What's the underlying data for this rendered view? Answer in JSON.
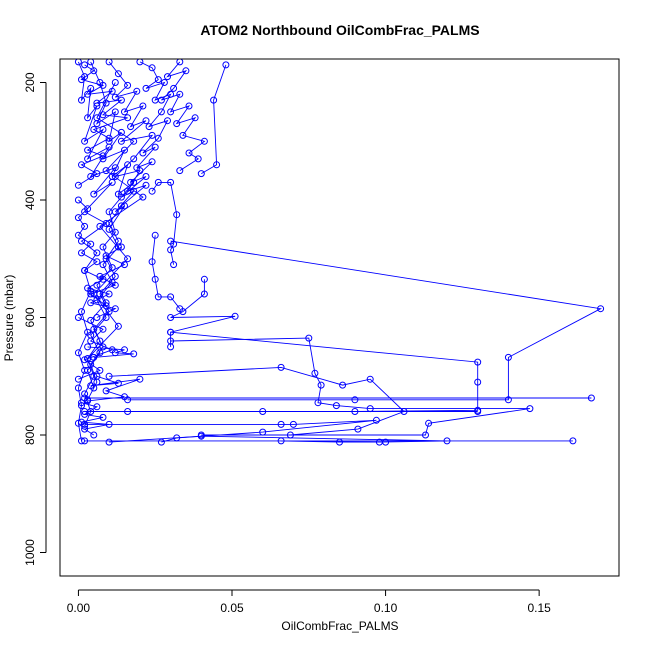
{
  "chart_data": {
    "type": "line",
    "title": "ATOM2 Northbound OilCombFrac_PALMS",
    "xlabel": "OilCombFrac_PALMS",
    "ylabel": "Pressure (mbar)",
    "xlim": [
      -0.006,
      0.176
    ],
    "ylim": [
      1040,
      160
    ],
    "y_reversed": true,
    "grid": false,
    "x_ticks": [
      0.0,
      0.05,
      0.1,
      0.15
    ],
    "x_tick_labels": [
      "0.00",
      "0.05",
      "0.10",
      "0.15"
    ],
    "y_ticks": [
      200,
      400,
      600,
      800,
      1000
    ],
    "y_tick_labels": [
      "200",
      "400",
      "600",
      "800",
      "1000"
    ],
    "series_color": "#0000ff",
    "series": [
      {
        "points": [
          [
            0.0,
            165
          ],
          [
            0.002,
            190
          ],
          [
            0.001,
            230
          ],
          [
            0.004,
            210
          ],
          [
            0.003,
            260
          ],
          [
            0.006,
            240
          ],
          [
            0.002,
            300
          ],
          [
            0.008,
            280
          ],
          [
            0.003,
            330
          ],
          [
            0.01,
            310
          ],
          [
            0.004,
            360
          ],
          [
            0.012,
            345
          ],
          [
            0.005,
            390
          ],
          [
            0.011,
            370
          ],
          [
            0.002,
            420
          ],
          [
            0.009,
            440
          ],
          [
            0.001,
            470
          ],
          [
            0.006,
            490
          ],
          [
            0.002,
            520
          ],
          [
            0.004,
            555
          ],
          [
            0.001,
            590
          ],
          [
            0.003,
            625
          ],
          [
            0.0,
            660
          ],
          [
            0.002,
            690
          ],
          [
            0.0,
            720
          ],
          [
            0.001,
            750
          ],
          [
            0.0,
            780
          ],
          [
            0.001,
            810
          ]
        ]
      },
      {
        "points": [
          [
            0.004,
            165
          ],
          [
            0.007,
            200
          ],
          [
            0.009,
            235
          ],
          [
            0.006,
            270
          ],
          [
            0.012,
            250
          ],
          [
            0.01,
            300
          ],
          [
            0.014,
            285
          ],
          [
            0.008,
            330
          ],
          [
            0.015,
            315
          ],
          [
            0.011,
            360
          ],
          [
            0.016,
            340
          ],
          [
            0.013,
            390
          ],
          [
            0.018,
            370
          ],
          [
            0.01,
            420
          ],
          [
            0.012,
            455
          ],
          [
            0.008,
            480
          ],
          [
            0.011,
            515
          ],
          [
            0.006,
            545
          ],
          [
            0.009,
            575
          ],
          [
            0.004,
            605
          ],
          [
            0.007,
            640
          ],
          [
            0.003,
            670
          ],
          [
            0.005,
            700
          ],
          [
            0.002,
            730
          ],
          [
            0.004,
            760
          ],
          [
            0.002,
            785
          ]
        ]
      },
      {
        "points": [
          [
            0.01,
            165
          ],
          [
            0.013,
            185
          ],
          [
            0.016,
            205
          ],
          [
            0.012,
            225
          ],
          [
            0.019,
            215
          ],
          [
            0.015,
            250
          ],
          [
            0.021,
            240
          ],
          [
            0.017,
            275
          ],
          [
            0.022,
            265
          ],
          [
            0.014,
            300
          ],
          [
            0.024,
            290
          ],
          [
            0.018,
            330
          ],
          [
            0.012,
            360
          ],
          [
            0.02,
            350
          ],
          [
            0.016,
            385
          ],
          [
            0.022,
            375
          ],
          [
            0.014,
            410
          ],
          [
            0.01,
            440
          ],
          [
            0.013,
            470
          ],
          [
            0.009,
            500
          ],
          [
            0.012,
            530
          ],
          [
            0.007,
            560
          ],
          [
            0.01,
            590
          ],
          [
            0.005,
            620
          ],
          [
            0.008,
            650
          ],
          [
            0.004,
            680
          ],
          [
            0.006,
            710
          ],
          [
            0.003,
            740
          ]
        ]
      },
      {
        "points": [
          [
            0.02,
            165
          ],
          [
            0.024,
            175
          ],
          [
            0.026,
            195
          ],
          [
            0.022,
            210
          ],
          [
            0.028,
            200
          ],
          [
            0.025,
            230
          ],
          [
            0.03,
            220
          ],
          [
            0.027,
            250
          ],
          [
            0.023,
            275
          ],
          [
            0.029,
            265
          ],
          [
            0.026,
            295
          ],
          [
            0.021,
            320
          ],
          [
            0.025,
            310
          ],
          [
            0.019,
            345
          ],
          [
            0.024,
            335
          ],
          [
            0.017,
            370
          ],
          [
            0.022,
            360
          ],
          [
            0.014,
            395
          ],
          [
            0.018,
            385
          ],
          [
            0.012,
            420
          ],
          [
            0.015,
            410
          ],
          [
            0.01,
            450
          ],
          [
            0.013,
            480
          ],
          [
            0.008,
            510
          ],
          [
            0.011,
            540
          ],
          [
            0.006,
            570
          ],
          [
            0.009,
            600
          ],
          [
            0.004,
            630
          ],
          [
            0.007,
            660
          ],
          [
            0.003,
            690
          ],
          [
            0.005,
            720
          ]
        ]
      },
      {
        "points": [
          [
            0.033,
            165
          ],
          [
            0.029,
            190
          ],
          [
            0.035,
            180
          ],
          [
            0.031,
            210
          ],
          [
            0.027,
            230
          ],
          [
            0.033,
            220
          ],
          [
            0.03,
            250
          ],
          [
            0.036,
            240
          ],
          [
            0.032,
            270
          ],
          [
            0.038,
            260
          ],
          [
            0.034,
            290
          ],
          [
            0.041,
            300
          ],
          [
            0.036,
            320
          ],
          [
            0.039,
            330
          ],
          [
            0.033,
            350
          ]
        ]
      },
      {
        "points": [
          [
            0.048,
            170
          ],
          [
            0.044,
            230
          ],
          [
            0.045,
            340
          ],
          [
            0.04,
            355
          ]
        ]
      },
      {
        "points": [
          [
            0.024,
            385
          ],
          [
            0.026,
            370
          ],
          [
            0.03,
            370
          ],
          [
            0.032,
            425
          ],
          [
            0.031,
            475
          ],
          [
            0.03,
            485
          ],
          [
            0.031,
            510
          ]
        ]
      },
      {
        "points": [
          [
            0.025,
            460
          ],
          [
            0.024,
            505
          ],
          [
            0.025,
            535
          ],
          [
            0.026,
            565
          ],
          [
            0.03,
            565
          ],
          [
            0.033,
            585
          ]
        ]
      },
      {
        "points": [
          [
            0.041,
            535
          ],
          [
            0.041,
            560
          ],
          [
            0.034,
            590
          ],
          [
            0.03,
            600
          ],
          [
            0.051,
            598
          ],
          [
            0.03,
            625
          ],
          [
            0.03,
            650
          ]
        ]
      },
      {
        "points": [
          [
            0.03,
            470
          ],
          [
            0.17,
            585
          ],
          [
            0.14,
            668
          ],
          [
            0.14,
            740
          ],
          [
            0.09,
            740
          ],
          [
            0.016,
            740
          ]
        ]
      },
      {
        "points": [
          [
            0.03,
            625
          ],
          [
            0.13,
            676
          ],
          [
            0.13,
            710
          ],
          [
            0.13,
            758
          ],
          [
            0.09,
            760
          ],
          [
            0.06,
            760
          ],
          [
            0.016,
            760
          ]
        ]
      },
      {
        "points": [
          [
            0.03,
            640
          ],
          [
            0.075,
            635
          ],
          [
            0.077,
            695
          ],
          [
            0.079,
            715
          ],
          [
            0.078,
            745
          ],
          [
            0.084,
            750
          ],
          [
            0.095,
            755
          ],
          [
            0.147,
            755
          ],
          [
            0.114,
            780
          ],
          [
            0.113,
            800
          ],
          [
            0.04,
            800
          ]
        ]
      },
      {
        "points": [
          [
            0.01,
            700
          ],
          [
            0.066,
            685
          ],
          [
            0.086,
            715
          ],
          [
            0.095,
            705
          ],
          [
            0.106,
            760
          ],
          [
            0.091,
            790
          ],
          [
            0.069,
            800
          ]
        ]
      },
      {
        "points": [
          [
            0.002,
            737
          ],
          [
            0.167,
            737
          ]
        ]
      },
      {
        "points": [
          [
            0.002,
            760
          ],
          [
            0.13,
            760
          ]
        ]
      },
      {
        "points": [
          [
            0.002,
            810
          ],
          [
            0.161,
            810
          ]
        ]
      },
      {
        "points": [
          [
            0.01,
            812
          ],
          [
            0.04,
            802
          ],
          [
            0.12,
            810
          ],
          [
            0.098,
            812
          ],
          [
            0.066,
            810
          ],
          [
            0.085,
            812
          ],
          [
            0.1,
            812
          ]
        ]
      },
      {
        "points": [
          [
            0.002,
            782
          ],
          [
            0.066,
            782
          ],
          [
            0.07,
            782
          ],
          [
            0.097,
            775
          ],
          [
            0.06,
            795
          ],
          [
            0.032,
            805
          ],
          [
            0.027,
            812
          ]
        ]
      },
      {
        "points": [
          [
            0.003,
            650
          ],
          [
            0.015,
            655
          ],
          [
            0.012,
            660
          ],
          [
            0.018,
            662
          ],
          [
            0.005,
            668
          ]
        ]
      },
      {
        "points": [
          [
            0.0,
            600
          ],
          [
            0.008,
            620
          ],
          [
            0.004,
            640
          ],
          [
            0.011,
            655
          ],
          [
            0.002,
            672
          ],
          [
            0.007,
            690
          ],
          [
            0.0,
            705
          ]
        ]
      },
      {
        "points": [
          [
            0.002,
            170
          ],
          [
            0.005,
            180
          ],
          [
            0.001,
            195
          ],
          [
            0.008,
            205
          ],
          [
            0.003,
            220
          ],
          [
            0.011,
            215
          ],
          [
            0.006,
            235
          ],
          [
            0.014,
            230
          ],
          [
            0.008,
            255
          ],
          [
            0.016,
            260
          ],
          [
            0.005,
            280
          ],
          [
            0.01,
            295
          ],
          [
            0.003,
            315
          ],
          [
            0.008,
            325
          ],
          [
            0.001,
            340
          ],
          [
            0.006,
            355
          ],
          [
            0.0,
            375
          ]
        ]
      },
      {
        "points": [
          [
            0.0,
            400
          ],
          [
            0.003,
            415
          ],
          [
            0.0,
            430
          ],
          [
            0.002,
            445
          ],
          [
            0.0,
            460
          ],
          [
            0.004,
            475
          ],
          [
            0.001,
            490
          ],
          [
            0.006,
            505
          ],
          [
            0.002,
            520
          ],
          [
            0.008,
            535
          ],
          [
            0.003,
            550
          ],
          [
            0.01,
            560
          ],
          [
            0.004,
            575
          ],
          [
            0.012,
            585
          ],
          [
            0.006,
            600
          ]
        ]
      },
      {
        "points": [
          [
            0.014,
            480
          ],
          [
            0.009,
            495
          ],
          [
            0.015,
            510
          ],
          [
            0.007,
            530
          ],
          [
            0.012,
            545
          ],
          [
            0.004,
            560
          ],
          [
            0.009,
            580
          ]
        ]
      },
      {
        "points": [
          [
            0.006,
            700
          ],
          [
            0.013,
            712
          ],
          [
            0.004,
            716
          ],
          [
            0.02,
            705
          ],
          [
            0.009,
            725
          ],
          [
            0.015,
            735
          ],
          [
            0.003,
            742
          ]
        ]
      },
      {
        "points": [
          [
            0.001,
            745
          ],
          [
            0.006,
            752
          ],
          [
            0.002,
            765
          ],
          [
            0.008,
            770
          ],
          [
            0.001,
            778
          ],
          [
            0.01,
            782
          ],
          [
            0.002,
            790
          ],
          [
            0.005,
            800
          ]
        ]
      },
      {
        "points": [
          [
            0.012,
            200
          ],
          [
            0.006,
            260
          ],
          [
            0.018,
            300
          ],
          [
            0.009,
            350
          ],
          [
            0.021,
            395
          ],
          [
            0.007,
            445
          ],
          [
            0.016,
            500
          ],
          [
            0.005,
            560
          ],
          [
            0.013,
            615
          ],
          [
            0.003,
            670
          ]
        ]
      }
    ]
  }
}
